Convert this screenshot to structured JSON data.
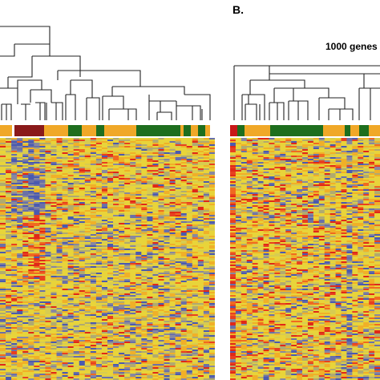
{
  "panel_b": {
    "label": "B.",
    "note": "1000 genes"
  }
}
